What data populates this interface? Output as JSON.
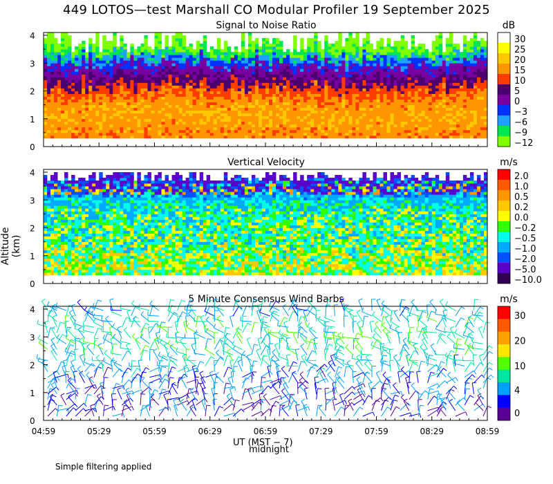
{
  "title": "449 LOTOS—test Marshall CO Modular Profiler 19 September 2025",
  "ylabel": "Altitude (km)",
  "xlabel": "UT (MST − 7)",
  "midnight_label": "midnight",
  "footnote": "Simple filtering applied",
  "x_ticks": [
    "04:59",
    "05:29",
    "05:59",
    "06:29",
    "06:59",
    "07:29",
    "07:59",
    "08:29",
    "08:59"
  ],
  "y_ticks": [
    "0",
    "1",
    "2",
    "3",
    "4"
  ],
  "panels": [
    {
      "title": "Signal to Noise Ratio",
      "unit": "dB",
      "colorbar_labels": [
        "30",
        "25",
        "20",
        "15",
        "10",
        "5",
        "0",
        "−3",
        "−6",
        "−9",
        "−12"
      ],
      "colors": [
        "#ffffff",
        "#ffff00",
        "#ffc800",
        "#ff9600",
        "#ff3c00",
        "#4b006e",
        "#7800a0",
        "#0032ff",
        "#1ea0ff",
        "#00e650",
        "#80ff00"
      ]
    },
    {
      "title": "Vertical Velocity",
      "unit": "m/s",
      "colorbar_labels": [
        "2.0",
        "1.0",
        "0.5",
        "0.2",
        "0.0",
        "−0.2",
        "−0.5",
        "−1.0",
        "−2.0",
        "−5.0",
        "−10.0"
      ],
      "colors": [
        "#ff0000",
        "#ff5a00",
        "#ff9600",
        "#ffc800",
        "#ffff00",
        "#32ff00",
        "#00ffe6",
        "#00aaff",
        "#0050ff",
        "#5a00c8",
        "#320050"
      ]
    },
    {
      "title": "5 Minute Consensus Wind Barbs",
      "unit": "m/s",
      "colorbar_labels": [
        "30",
        "20",
        "10",
        "4",
        "0"
      ],
      "colors": [
        "#ff0000",
        "#ff5a00",
        "#ffa000",
        "#ffe600",
        "#50ff00",
        "#00e6a0",
        "#00a0ff",
        "#0000ff",
        "#5a0096"
      ]
    }
  ],
  "chart_data": [
    {
      "type": "heatmap",
      "title": "Signal to Noise Ratio",
      "unit": "dB",
      "x_range": [
        "04:59",
        "08:59"
      ],
      "ylim_km": [
        0,
        4
      ],
      "profile_dB_by_altitude": {
        "0.5": 17,
        "1.0": 19,
        "1.5": 18,
        "2.0": 13,
        "2.4": 6,
        "2.8": 1,
        "3.2": -5,
        "3.5": -9,
        "3.8": -11
      },
      "note_top_altitude_km": 3.8
    },
    {
      "type": "heatmap",
      "title": "Vertical Velocity",
      "unit": "m/s",
      "x_range": [
        "04:59",
        "08:59"
      ],
      "ylim_km": [
        0,
        4
      ],
      "profile_mps_by_altitude": {
        "0.5": 0.0,
        "1.0": -0.1,
        "1.5": -0.2,
        "2.0": -0.2,
        "2.5": -0.3,
        "3.0": -0.6,
        "3.5": -1.5,
        "3.8": -3.0
      }
    },
    {
      "type": "scatter",
      "title": "5 Minute Consensus Wind Barbs",
      "unit": "m/s",
      "x_range": [
        "04:59",
        "08:59"
      ],
      "ylim_km": [
        0,
        4
      ],
      "speed_by_altitude_mps": {
        "0.2": 3,
        "0.6": 3,
        "1.0": 4,
        "1.4": 4,
        "1.8": 6,
        "2.2": 8,
        "2.6": 9,
        "3.0": 9,
        "3.4": 8,
        "3.8": 6
      }
    }
  ]
}
